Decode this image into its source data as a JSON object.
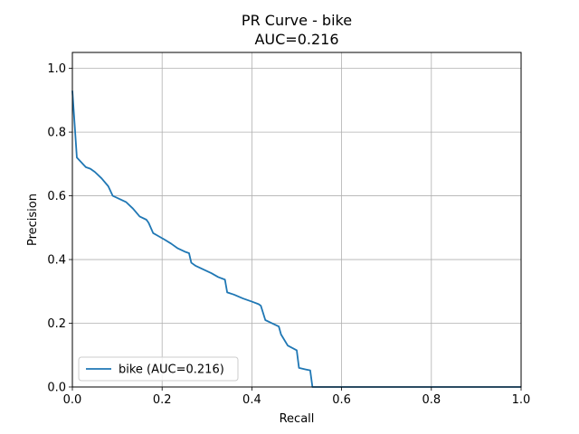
{
  "chart_data": {
    "type": "line",
    "title": "PR Curve - bike",
    "subtitle": "AUC=0.216",
    "xlabel": "Recall",
    "ylabel": "Precision",
    "xlim": [
      0.0,
      1.0
    ],
    "ylim": [
      0.0,
      1.05
    ],
    "xticks": [
      "0.0",
      "0.2",
      "0.4",
      "0.6",
      "0.8",
      "1.0"
    ],
    "yticks": [
      "0.0",
      "0.2",
      "0.4",
      "0.6",
      "0.8",
      "1.0"
    ],
    "grid": true,
    "legend_position": "lower-left",
    "series": [
      {
        "name": "bike (AUC=0.216)",
        "color": "#1f77b4",
        "x": [
          0.0,
          0.01,
          0.03,
          0.04,
          0.05,
          0.065,
          0.08,
          0.09,
          0.105,
          0.12,
          0.135,
          0.15,
          0.165,
          0.17,
          0.18,
          0.19,
          0.205,
          0.22,
          0.235,
          0.25,
          0.26,
          0.265,
          0.275,
          0.29,
          0.31,
          0.325,
          0.34,
          0.345,
          0.36,
          0.38,
          0.4,
          0.415,
          0.42,
          0.43,
          0.445,
          0.46,
          0.465,
          0.48,
          0.5,
          0.505,
          0.52,
          0.53,
          0.535,
          0.6,
          0.8,
          1.0
        ],
        "y": [
          0.93,
          0.72,
          0.69,
          0.685,
          0.675,
          0.655,
          0.63,
          0.6,
          0.59,
          0.58,
          0.56,
          0.535,
          0.525,
          0.515,
          0.483,
          0.475,
          0.463,
          0.45,
          0.435,
          0.425,
          0.42,
          0.39,
          0.38,
          0.37,
          0.357,
          0.345,
          0.337,
          0.297,
          0.29,
          0.278,
          0.268,
          0.26,
          0.255,
          0.21,
          0.2,
          0.19,
          0.165,
          0.13,
          0.115,
          0.06,
          0.055,
          0.052,
          0.0,
          0.0,
          0.0,
          0.0
        ]
      }
    ]
  }
}
